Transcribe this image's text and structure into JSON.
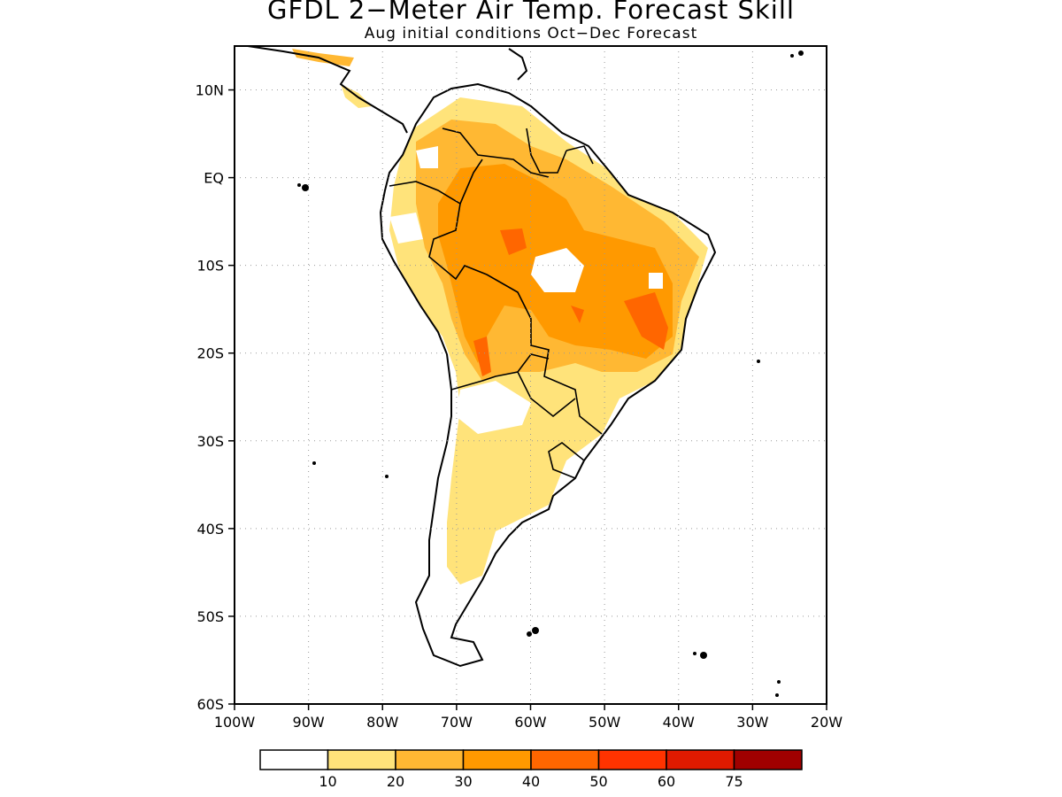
{
  "title": "GFDL 2−Meter Air Temp. Forecast Skill",
  "subtitle": "Aug initial conditions  Oct−Dec Forecast",
  "map": {
    "lon_range": [
      -100,
      -20
    ],
    "lat_range": [
      -60,
      15
    ],
    "lat_ticks": [
      {
        "value": 10,
        "label": "10N"
      },
      {
        "value": 0,
        "label": "EQ"
      },
      {
        "value": -10,
        "label": "10S"
      },
      {
        "value": -20,
        "label": "20S"
      },
      {
        "value": -30,
        "label": "30S"
      },
      {
        "value": -40,
        "label": "40S"
      },
      {
        "value": -50,
        "label": "50S"
      },
      {
        "value": -60,
        "label": "60S"
      }
    ],
    "lon_ticks": [
      {
        "value": -100,
        "label": "100W"
      },
      {
        "value": -90,
        "label": "90W"
      },
      {
        "value": -80,
        "label": "80W"
      },
      {
        "value": -70,
        "label": "70W"
      },
      {
        "value": -60,
        "label": "60W"
      },
      {
        "value": -50,
        "label": "50W"
      },
      {
        "value": -40,
        "label": "40W"
      },
      {
        "value": -30,
        "label": "30W"
      },
      {
        "value": -20,
        "label": "20W"
      }
    ],
    "gridlines": "dotted"
  },
  "colorbar": {
    "colors": [
      "#ffffff",
      "#ffe37a",
      "#ffb833",
      "#ff9900",
      "#ff6600",
      "#ff3300",
      "#e01a00",
      "#a00000"
    ],
    "labels": [
      "10",
      "20",
      "30",
      "40",
      "50",
      "60",
      "75"
    ]
  }
}
